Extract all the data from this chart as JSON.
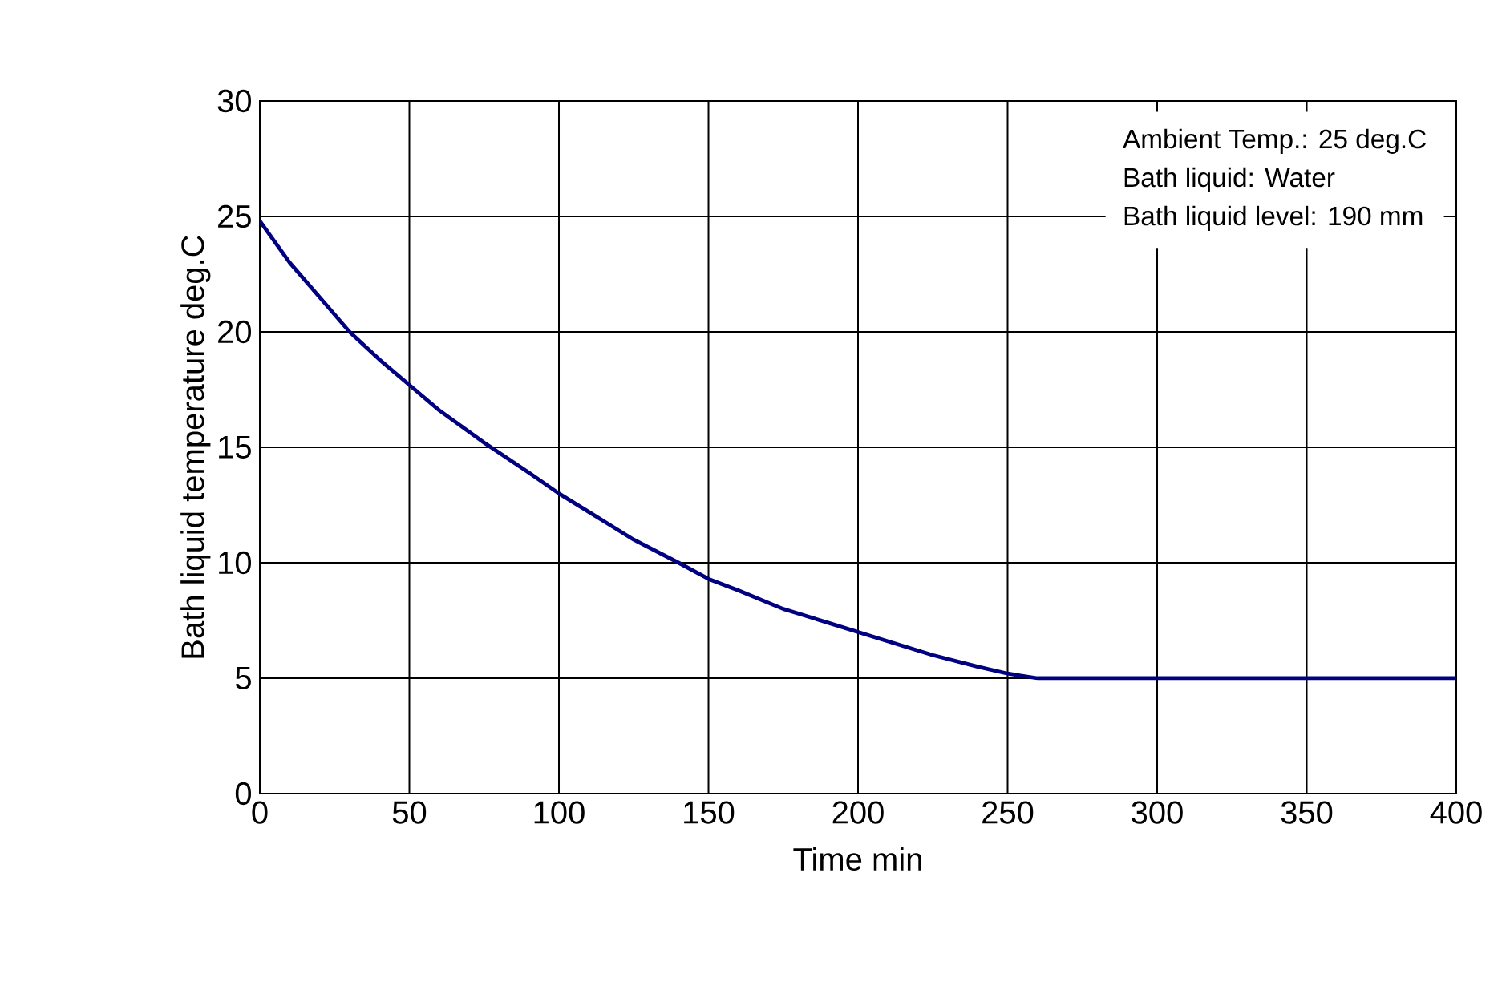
{
  "chart_data": {
    "type": "line",
    "xlabel": "Time min",
    "ylabel": "Bath liquid temperature deg.C",
    "annotations": [
      "Ambient Temp.: 25 deg.C",
      "Bath liquid: Water",
      "Bath liquid level: 190 mm"
    ],
    "x": [
      0,
      10,
      20,
      30,
      40,
      50,
      60,
      75,
      90,
      100,
      110,
      125,
      140,
      150,
      160,
      175,
      190,
      200,
      210,
      225,
      240,
      250,
      260,
      280,
      300,
      350,
      400
    ],
    "series": [
      {
        "color": "#000080",
        "values": [
          24.8,
          23.0,
          21.5,
          20.0,
          18.8,
          17.7,
          16.6,
          15.2,
          13.9,
          13.0,
          12.2,
          11.0,
          10.0,
          9.3,
          8.8,
          8.0,
          7.4,
          7.0,
          6.6,
          6.0,
          5.5,
          5.2,
          5.0,
          5.0,
          5.0,
          5.0,
          5.0
        ]
      }
    ],
    "xlim": [
      0,
      400
    ],
    "ylim": [
      0,
      30
    ],
    "xticks": [
      0,
      50,
      100,
      150,
      200,
      250,
      300,
      350,
      400
    ],
    "yticks": [
      0,
      5,
      10,
      15,
      20,
      25,
      30
    ],
    "grid": true,
    "marker": "none",
    "line_style": "solid"
  }
}
